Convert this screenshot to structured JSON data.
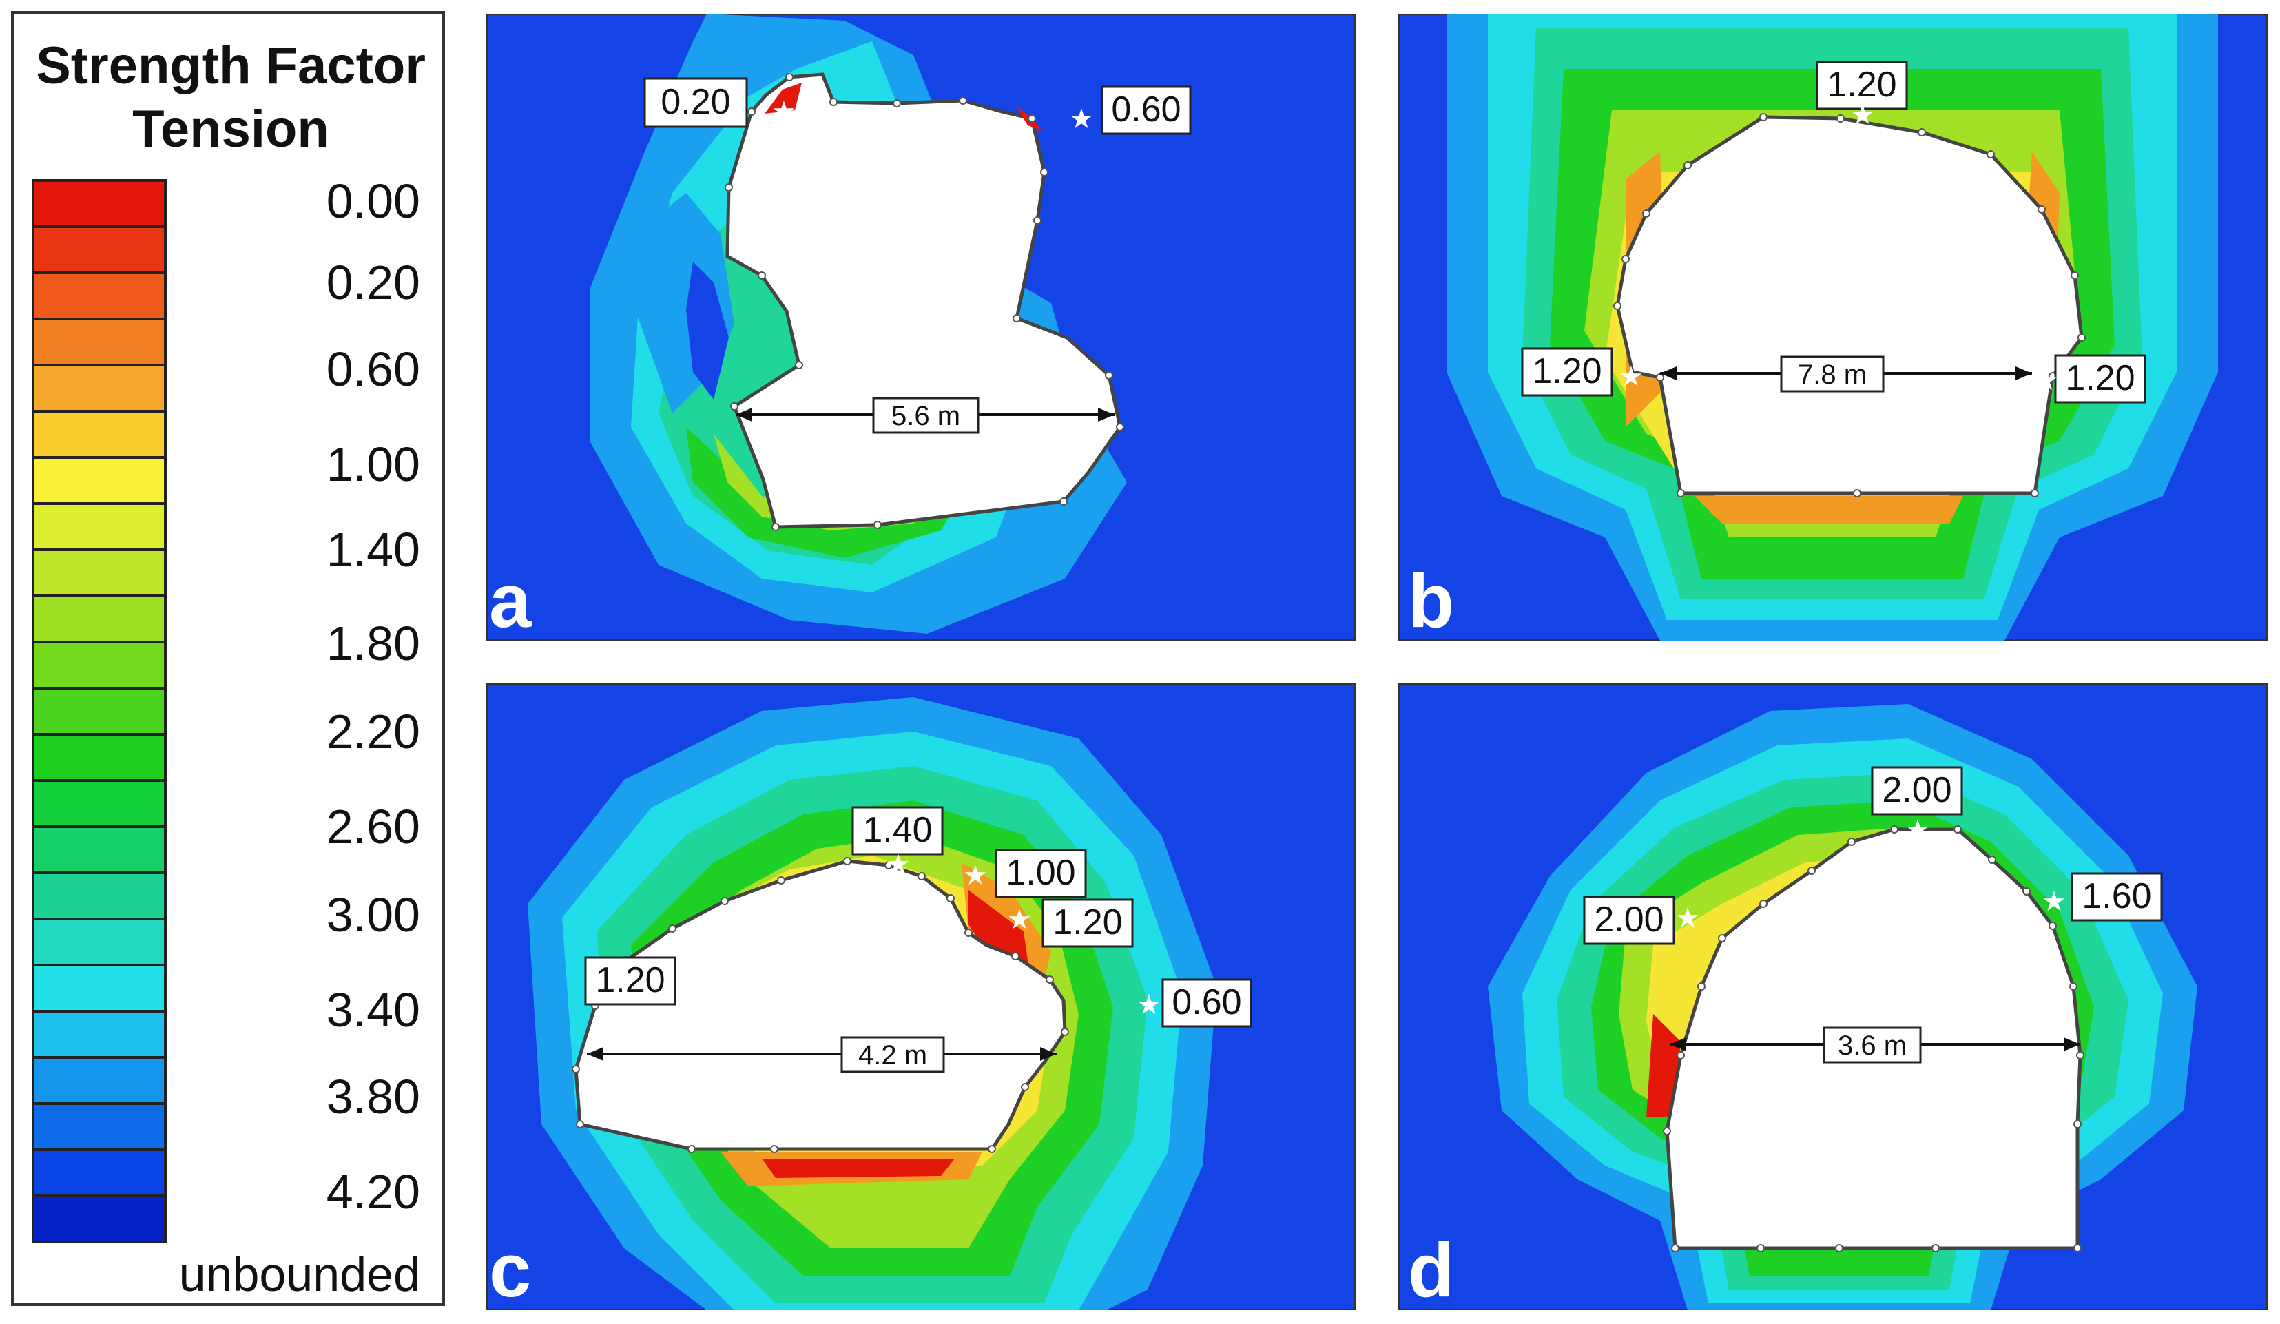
{
  "legend": {
    "title_line1": "Strength Factor",
    "title_line2": "Tension",
    "colors": [
      "#e3170a",
      "#ea3512",
      "#ef5a1a",
      "#f27f22",
      "#f6a62b",
      "#fbcc2e",
      "#f9ef35",
      "#dcef2f",
      "#bfe729",
      "#9fe023",
      "#75da1d",
      "#4ad41d",
      "#1ed01d",
      "#14d03c",
      "#14d066",
      "#1bd294",
      "#22d8c0",
      "#23e0e6",
      "#1ec0ee",
      "#1595ec",
      "#0f6ce8",
      "#0a44e6",
      "#0522c8"
    ],
    "labels": [
      "0.00",
      "0.20",
      "0.60",
      "1.00",
      "1.40",
      "1.80",
      "2.20",
      "2.60",
      "3.00",
      "3.40",
      "3.80",
      "4.20",
      "unbounded"
    ]
  },
  "panels": [
    {
      "id": "a",
      "letter": "a",
      "dimension": "5.6 m",
      "labels": [
        "0.20",
        "0.60"
      ]
    },
    {
      "id": "b",
      "letter": "b",
      "dimension": "7.8 m",
      "labels": [
        "1.20",
        "1.20",
        "1.20"
      ]
    },
    {
      "id": "c",
      "letter": "c",
      "dimension": "4.2 m",
      "labels": [
        "1.40",
        "1.00",
        "1.20",
        "1.20",
        "0.60"
      ]
    },
    {
      "id": "d",
      "letter": "d",
      "dimension": "3.6 m",
      "labels": [
        "2.00",
        "2.00",
        "1.60"
      ]
    }
  ],
  "colors": {
    "background_blue": "#1544e6",
    "contour_light_blue": "#1aa0ee",
    "contour_cyan": "#21dde8",
    "contour_teal": "#1fd59a",
    "contour_green": "#1ed025",
    "contour_lime": "#a4e025",
    "contour_yellow": "#f5e635",
    "contour_orange": "#f29a22",
    "contour_red": "#e3170a"
  }
}
